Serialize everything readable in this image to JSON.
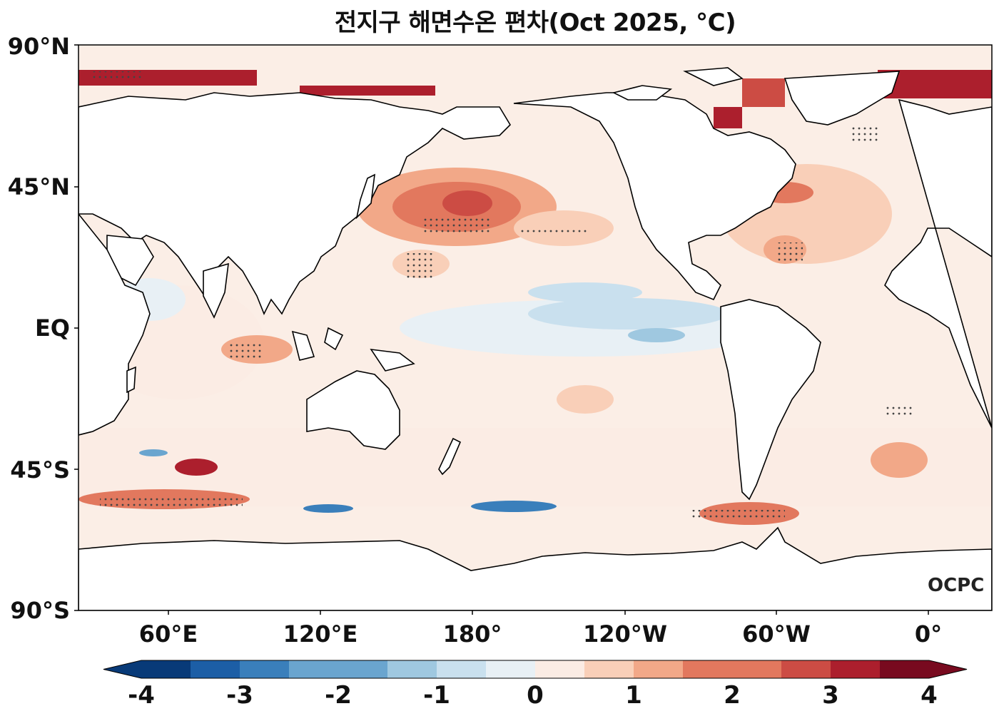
{
  "title": "전지구 해면수온 편차(Oct 2025, °C)",
  "lat_labels": [
    "90°N",
    "45°N",
    "EQ",
    "45°S",
    "90°S"
  ],
  "lon_labels": [
    "60°E",
    "120°E",
    "180°",
    "120°W",
    "60°W",
    "0°"
  ],
  "colorbar": {
    "ticks": [
      "-4",
      "-3",
      "-2",
      "-1",
      "0",
      "1",
      "2",
      "3",
      "4"
    ],
    "colors": [
      "#083a78",
      "#1c5ea6",
      "#3a7fbb",
      "#6aa5cf",
      "#9fc8e0",
      "#c9e0ee",
      "#e8f0f5",
      "#fbece4",
      "#f9cfb8",
      "#f2a888",
      "#e2785e",
      "#cc4c44",
      "#ac1f2d",
      "#780a1f"
    ]
  },
  "logo": "OCPC"
}
